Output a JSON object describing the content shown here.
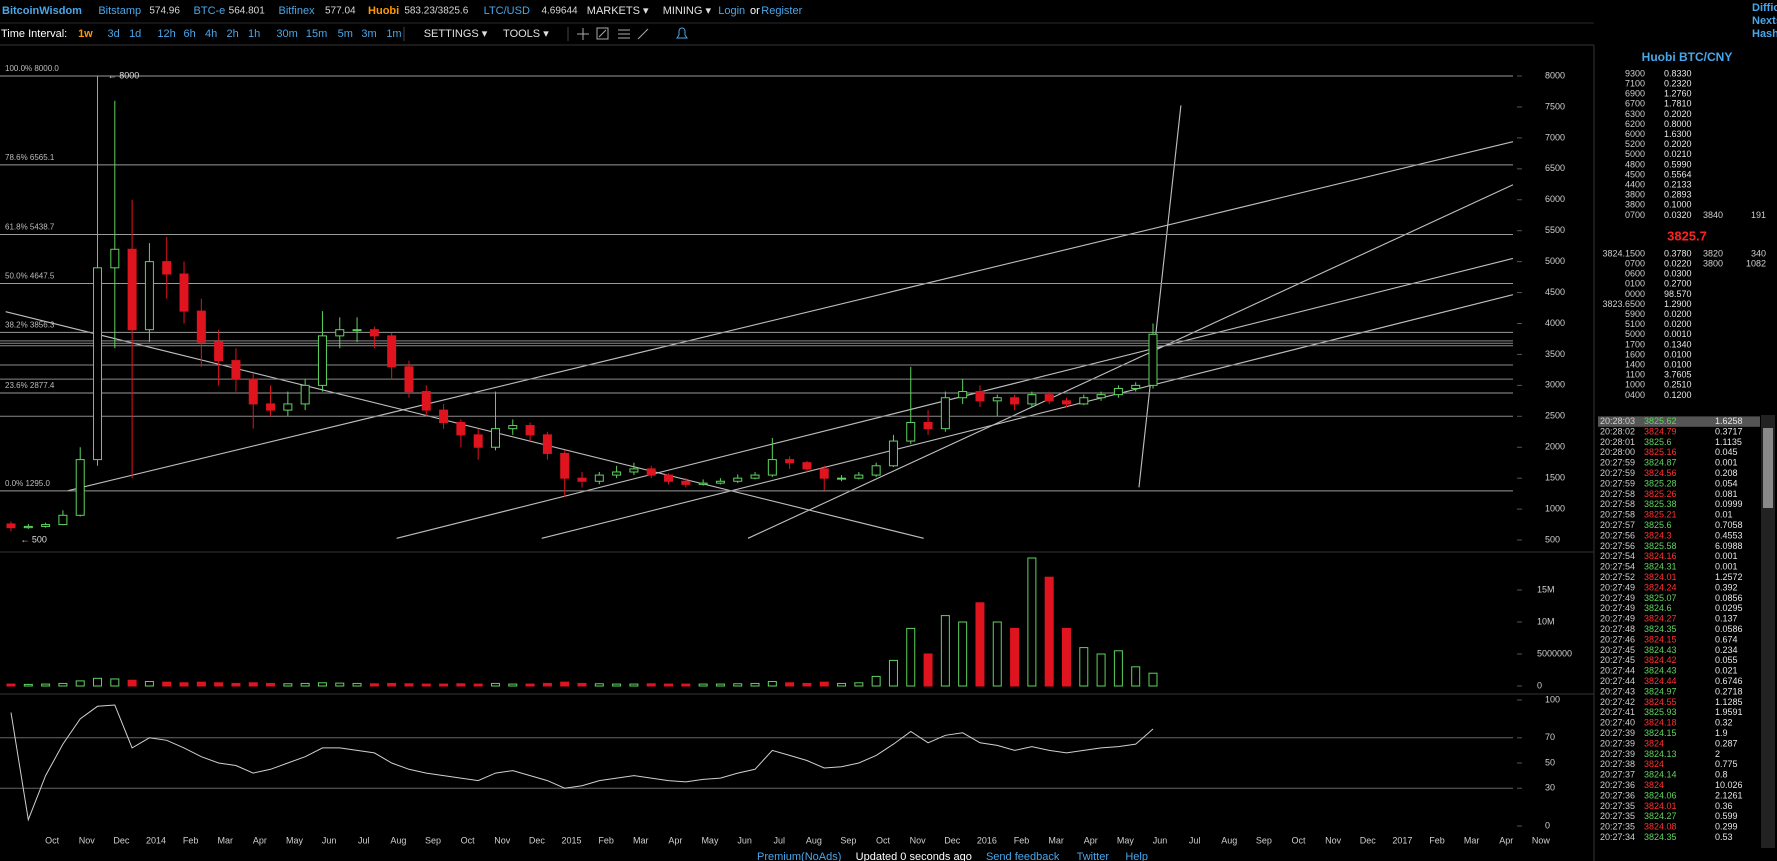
{
  "header": {
    "items": [
      {
        "text": "BitcoinWisdom",
        "style": "brand"
      },
      {
        "text": "Bitstamp",
        "style": "link"
      },
      {
        "text": "574.96",
        "style": "value"
      },
      {
        "text": "BTC-e",
        "style": "link"
      },
      {
        "text": "564.801",
        "style": "value"
      },
      {
        "text": "Bitfinex",
        "style": "link"
      },
      {
        "text": "577.04",
        "style": "value"
      },
      {
        "text": "Huobi",
        "style": "accent"
      },
      {
        "text": "583.23/3825.6",
        "style": "value"
      },
      {
        "text": "LTC/USD",
        "style": "link"
      },
      {
        "text": "4.69644",
        "style": "value"
      },
      {
        "text": "MARKETS ▾",
        "style": "menu"
      },
      {
        "text": "MINING ▾",
        "style": "menu"
      },
      {
        "text": "Login",
        "style": "link"
      },
      {
        "text": "or",
        "style": "plain"
      },
      {
        "text": "Register",
        "style": "link"
      }
    ],
    "right": [
      "Diffic",
      "Nexts",
      "Hash"
    ]
  },
  "toolbar": {
    "items": [
      {
        "text": "Time Interval:",
        "style": "plain"
      },
      {
        "text": "1w",
        "style": "active"
      },
      {
        "text": "3d",
        "style": "link"
      },
      {
        "text": "1d",
        "style": "link"
      },
      {
        "text": "12h",
        "style": "link"
      },
      {
        "text": "6h",
        "style": "link"
      },
      {
        "text": "4h",
        "style": "link"
      },
      {
        "text": "2h",
        "style": "link"
      },
      {
        "text": "1h",
        "style": "link"
      },
      {
        "text": "30m",
        "style": "link"
      },
      {
        "text": "15m",
        "style": "link"
      },
      {
        "text": "5m",
        "style": "link"
      },
      {
        "text": "3m",
        "style": "link"
      },
      {
        "text": "1m",
        "style": "link"
      },
      {
        "text": "SETTINGS ▾",
        "style": "menu"
      },
      {
        "text": "TOOLS ▾",
        "style": "menu"
      }
    ]
  },
  "chart_data": {
    "type": "candlestick",
    "x_labels": [
      "Oct",
      "Nov",
      "Dec",
      "2014",
      "Feb",
      "Mar",
      "Apr",
      "May",
      "Jun",
      "Jul",
      "Aug",
      "Sep",
      "Oct",
      "Nov",
      "Dec",
      "2015",
      "Feb",
      "Mar",
      "Apr",
      "May",
      "Jun",
      "Jul",
      "Aug",
      "Sep",
      "Oct",
      "Nov",
      "Dec",
      "2016",
      "Feb",
      "Mar",
      "Apr",
      "May",
      "Jun",
      "Jul",
      "Aug",
      "Sep",
      "Oct",
      "Nov",
      "Dec",
      "2017",
      "Feb",
      "Mar",
      "Apr",
      "Now"
    ],
    "up_color": "#5fd35f",
    "down_color": "#e0141e",
    "candles": [
      [
        760,
        800,
        640,
        700
      ],
      [
        700,
        760,
        680,
        720
      ],
      [
        720,
        780,
        700,
        750
      ],
      [
        750,
        980,
        740,
        900
      ],
      [
        900,
        2000,
        880,
        1800
      ],
      [
        1800,
        8000,
        1700,
        4900
      ],
      [
        4900,
        7600,
        3600,
        5200
      ],
      [
        5200,
        6000,
        1500,
        3900
      ],
      [
        3900,
        5300,
        3700,
        5000
      ],
      [
        5000,
        5400,
        4400,
        4800
      ],
      [
        4800,
        5000,
        4000,
        4200
      ],
      [
        4200,
        4400,
        3300,
        3700
      ],
      [
        3700,
        3900,
        3000,
        3400
      ],
      [
        3400,
        3600,
        2900,
        3100
      ],
      [
        3100,
        3200,
        2300,
        2700
      ],
      [
        2700,
        3000,
        2500,
        2600
      ],
      [
        2600,
        2900,
        2500,
        2700
      ],
      [
        2700,
        3100,
        2600,
        3000
      ],
      [
        3000,
        4200,
        2900,
        3800
      ],
      [
        3800,
        4100,
        3600,
        3900
      ],
      [
        3900,
        4100,
        3700,
        3900
      ],
      [
        3900,
        3950,
        3600,
        3800
      ],
      [
        3800,
        3850,
        3100,
        3300
      ],
      [
        3300,
        3400,
        2800,
        2900
      ],
      [
        2900,
        3000,
        2500,
        2600
      ],
      [
        2600,
        2700,
        2300,
        2400
      ],
      [
        2400,
        2450,
        2000,
        2200
      ],
      [
        2200,
        2300,
        1800,
        2000
      ],
      [
        2000,
        2900,
        1950,
        2300
      ],
      [
        2300,
        2450,
        2200,
        2350
      ],
      [
        2350,
        2400,
        2100,
        2200
      ],
      [
        2200,
        2250,
        1800,
        1900
      ],
      [
        1900,
        1950,
        1200,
        1500
      ],
      [
        1500,
        1600,
        1350,
        1450
      ],
      [
        1450,
        1600,
        1400,
        1550
      ],
      [
        1550,
        1700,
        1500,
        1600
      ],
      [
        1600,
        1750,
        1550,
        1650
      ],
      [
        1650,
        1700,
        1500,
        1550
      ],
      [
        1550,
        1580,
        1400,
        1450
      ],
      [
        1450,
        1500,
        1350,
        1400
      ],
      [
        1400,
        1480,
        1380,
        1420
      ],
      [
        1420,
        1500,
        1400,
        1450
      ],
      [
        1450,
        1560,
        1420,
        1500
      ],
      [
        1500,
        1600,
        1480,
        1550
      ],
      [
        1550,
        2150,
        1520,
        1800
      ],
      [
        1800,
        1850,
        1650,
        1750
      ],
      [
        1750,
        1780,
        1600,
        1650
      ],
      [
        1650,
        1700,
        1300,
        1500
      ],
      [
        1500,
        1550,
        1450,
        1500
      ],
      [
        1500,
        1600,
        1480,
        1550
      ],
      [
        1550,
        1750,
        1520,
        1700
      ],
      [
        1700,
        2200,
        1680,
        2100
      ],
      [
        2100,
        3300,
        2050,
        2400
      ],
      [
        2400,
        2600,
        2200,
        2300
      ],
      [
        2300,
        2900,
        2250,
        2800
      ],
      [
        2800,
        3100,
        2700,
        2900
      ],
      [
        2900,
        3000,
        2650,
        2750
      ],
      [
        2750,
        2850,
        2500,
        2800
      ],
      [
        2800,
        2850,
        2600,
        2700
      ],
      [
        2700,
        2900,
        2650,
        2850
      ],
      [
        2850,
        2900,
        2700,
        2750
      ],
      [
        2750,
        2800,
        2650,
        2700
      ],
      [
        2700,
        2850,
        2680,
        2800
      ],
      [
        2800,
        2900,
        2750,
        2850
      ],
      [
        2850,
        3000,
        2800,
        2950
      ],
      [
        2950,
        3050,
        2900,
        3000
      ],
      [
        3000,
        4000,
        2950,
        3826
      ]
    ],
    "volume": [
      300000,
      250000,
      300000,
      400000,
      800000,
      1200000,
      1100000,
      900000,
      700000,
      600000,
      500000,
      600000,
      500000,
      400000,
      500000,
      400000,
      350000,
      400000,
      500000,
      450000,
      400000,
      350000,
      400000,
      350000,
      300000,
      300000,
      350000,
      300000,
      400000,
      300000,
      300000,
      400000,
      600000,
      400000,
      350000,
      300000,
      300000,
      350000,
      300000,
      300000,
      300000,
      300000,
      350000,
      400000,
      700000,
      500000,
      400000,
      600000,
      400000,
      500000,
      1500000,
      4000000,
      9000000,
      5000000,
      11000000,
      10000000,
      13000000,
      10000000,
      9000000,
      20000000,
      17000000,
      9000000,
      6000000,
      5000000,
      5500000,
      3000000,
      2000000
    ],
    "rsi": [
      90,
      5,
      40,
      65,
      85,
      95,
      96,
      62,
      70,
      68,
      62,
      55,
      50,
      48,
      42,
      45,
      50,
      55,
      62,
      62,
      60,
      58,
      50,
      45,
      42,
      40,
      38,
      36,
      42,
      44,
      40,
      36,
      30,
      32,
      36,
      38,
      40,
      38,
      36,
      35,
      37,
      38,
      42,
      45,
      60,
      56,
      52,
      46,
      47,
      50,
      56,
      65,
      75,
      66,
      72,
      74,
      66,
      64,
      60,
      63,
      60,
      58,
      60,
      62,
      63,
      65,
      77
    ],
    "ylim": [
      300,
      8400
    ],
    "yticks": [
      500,
      1000,
      1500,
      2000,
      2500,
      3000,
      3500,
      4000,
      4500,
      5000,
      5500,
      6000,
      6500,
      7000,
      7500,
      8000
    ],
    "volume_ylim": [
      0,
      20000000
    ],
    "volume_yticks": [
      {
        "value": 15000000,
        "label": "15M"
      },
      {
        "value": 10000000,
        "label": "10M"
      },
      5000000,
      0
    ],
    "rsi_ylim": [
      0,
      100
    ],
    "rsi_yticks": [
      100,
      70,
      50,
      30,
      0
    ],
    "rsi_bands": [
      70,
      30
    ],
    "fib_levels": [
      {
        "value": 8000,
        "label": "100.0% 8000.0"
      },
      {
        "value": 6565.1,
        "label": "78.6% 6565.1"
      },
      {
        "value": 5438.7,
        "label": "61.8% 5438.7"
      },
      {
        "value": 4647.5,
        "label": "50.0% 4647.5"
      },
      {
        "value": 3856.3,
        "label": "38.2% 3856.3"
      },
      {
        "value": 2877.4,
        "label": "23.6% 2877.4"
      },
      {
        "value": 1295.0,
        "label": "0.0% 1295.0"
      }
    ],
    "horizontal_lines": [
      3720,
      3680,
      3640,
      3330,
      3100,
      2500
    ],
    "annotations": [
      "← 8000",
      "← 500"
    ]
  },
  "order_book": {
    "title": "Huobi BTC/CNY",
    "asks": [
      [
        "9300",
        "0.8330"
      ],
      [
        "7100",
        "0.2320"
      ],
      [
        "6900",
        "1.2760"
      ],
      [
        "6700",
        "1.7810"
      ],
      [
        "6300",
        "0.2020"
      ],
      [
        "6200",
        "0.8000"
      ],
      [
        "6000",
        "1.6300"
      ],
      [
        "5200",
        "0.2020"
      ],
      [
        "5000",
        "0.0210"
      ],
      [
        "4800",
        "0.5990"
      ],
      [
        "4500",
        "0.5564"
      ],
      [
        "4400",
        "0.2133"
      ],
      [
        "3800",
        "0.2893"
      ],
      [
        "3800",
        "0.1000"
      ],
      [
        "0700",
        "0.0320",
        "3840",
        "191"
      ]
    ],
    "last_price": "3825.7",
    "bids": [
      [
        "3824.1500",
        "0.3780",
        "3820",
        "340"
      ],
      [
        "0700",
        "0.0220",
        "3800",
        "1082"
      ],
      [
        "0600",
        "0.0300"
      ],
      [
        "0100",
        "0.2700"
      ],
      [
        "0000",
        "98.570"
      ],
      [
        "3823.6500",
        "1.2900"
      ],
      [
        "5900",
        "0.0200"
      ],
      [
        "5100",
        "0.0200"
      ],
      [
        "5000",
        "0.0010"
      ],
      [
        "1700",
        "0.1340"
      ],
      [
        "1600",
        "0.0100"
      ],
      [
        "1400",
        "0.0100"
      ],
      [
        "1100",
        "3.7605"
      ],
      [
        "1000",
        "0.2510"
      ],
      [
        "0400",
        "0.1200"
      ]
    ]
  },
  "trades": [
    [
      "20:28:03",
      "3825.62",
      "1.6258",
      "buy"
    ],
    [
      "20:28:02",
      "3824.79",
      "0.3717",
      "sell"
    ],
    [
      "20:28:01",
      "3825.6",
      "1.1135",
      "buy"
    ],
    [
      "20:28:00",
      "3825.16",
      "0.045",
      "sell"
    ],
    [
      "20:27:59",
      "3824.87",
      "0.001",
      "buy"
    ],
    [
      "20:27:59",
      "3824.56",
      "0.208",
      "sell"
    ],
    [
      "20:27:59",
      "3825.28",
      "0.054",
      "buy"
    ],
    [
      "20:27:58",
      "3825.26",
      "0.081",
      "sell"
    ],
    [
      "20:27:58",
      "3825.38",
      "0.0999",
      "buy"
    ],
    [
      "20:27:58",
      "3825.21",
      "0.01",
      "sell"
    ],
    [
      "20:27:57",
      "3825.6",
      "0.7058",
      "buy"
    ],
    [
      "20:27:56",
      "3824.3",
      "0.4553",
      "sell"
    ],
    [
      "20:27:56",
      "3825.58",
      "6.0988",
      "buy"
    ],
    [
      "20:27:54",
      "3824.16",
      "0.001",
      "sell"
    ],
    [
      "20:27:54",
      "3824.31",
      "0.001",
      "buy"
    ],
    [
      "20:27:52",
      "3824.01",
      "1.2572",
      "sell"
    ],
    [
      "20:27:49",
      "3824.24",
      "0.392",
      "sell"
    ],
    [
      "20:27:49",
      "3825.07",
      "0.0856",
      "buy"
    ],
    [
      "20:27:49",
      "3824.6",
      "0.0295",
      "buy"
    ],
    [
      "20:27:49",
      "3824.27",
      "0.137",
      "sell"
    ],
    [
      "20:27:48",
      "3824.35",
      "0.0586",
      "buy"
    ],
    [
      "20:27:46",
      "3824.15",
      "0.674",
      "sell"
    ],
    [
      "20:27:45",
      "3824.43",
      "0.234",
      "buy"
    ],
    [
      "20:27:45",
      "3824.42",
      "0.055",
      "sell"
    ],
    [
      "20:27:44",
      "3824.43",
      "0.021",
      "buy"
    ],
    [
      "20:27:44",
      "3824.44",
      "0.6746",
      "sell"
    ],
    [
      "20:27:43",
      "3824.97",
      "0.2718",
      "buy"
    ],
    [
      "20:27:42",
      "3824.55",
      "1.1285",
      "sell"
    ],
    [
      "20:27:41",
      "3825.93",
      "1.9591",
      "buy"
    ],
    [
      "20:27:40",
      "3824.18",
      "0.32",
      "sell"
    ],
    [
      "20:27:39",
      "3824.15",
      "1.9",
      "buy"
    ],
    [
      "20:27:39",
      "3824",
      "0.287",
      "sell"
    ],
    [
      "20:27:39",
      "3824.13",
      "2",
      "buy"
    ],
    [
      "20:27:38",
      "3824",
      "0.775",
      "sell"
    ],
    [
      "20:27:37",
      "3824.14",
      "0.8",
      "buy"
    ],
    [
      "20:27:36",
      "3824",
      "10.026",
      "sell"
    ],
    [
      "20:27:36",
      "3824.06",
      "2.1261",
      "buy"
    ],
    [
      "20:27:35",
      "3824.01",
      "0.36",
      "sell"
    ],
    [
      "20:27:35",
      "3824.27",
      "0.599",
      "buy"
    ],
    [
      "20:27:35",
      "3824.08",
      "0.299",
      "sell"
    ],
    [
      "20:27:34",
      "3824.35",
      "0.53",
      "buy"
    ]
  ],
  "footer": [
    {
      "text": "Premium(NoAds)",
      "style": "link"
    },
    {
      "text": "Updated 0 seconds ago",
      "style": "plain"
    },
    {
      "text": "Send feedback",
      "style": "link"
    },
    {
      "text": "Twitter",
      "style": "link"
    },
    {
      "text": "Help",
      "style": "link"
    }
  ]
}
